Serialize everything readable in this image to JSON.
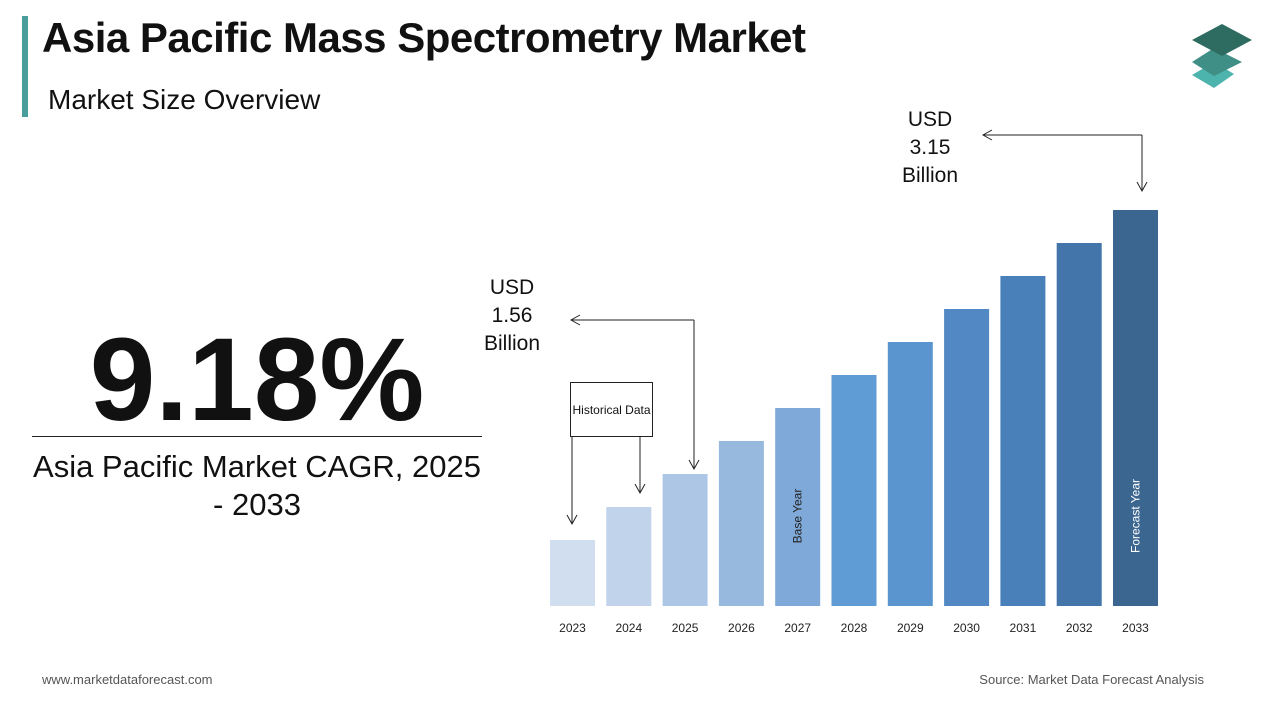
{
  "header": {
    "title": "Asia Pacific Mass Spectrometry Market",
    "subtitle": "Market Size Overview"
  },
  "logo_icon": "stacked-layers-icon",
  "cagr": {
    "value": "9.18%",
    "label": "Asia Pacific Market CAGR, 2025 - 2033"
  },
  "footer": {
    "website": "www.marketdataforecast.com",
    "source": "Source: Market Data Forecast Analysis"
  },
  "chart_data": {
    "type": "bar",
    "categories": [
      "2023",
      "2024",
      "2025",
      "2026",
      "2027",
      "2028",
      "2029",
      "2030",
      "2031",
      "2032",
      "2033"
    ],
    "values": [
      null,
      null,
      1.56,
      null,
      null,
      null,
      null,
      null,
      null,
      null,
      3.15
    ],
    "unit": "USD Billion",
    "colors": [
      "#d1deef",
      "#c0d3ea",
      "#adc6e5",
      "#97b9de",
      "#7fa9d8",
      "#5f9bd5",
      "#5a95d0",
      "#5289c4",
      "#4a80ba",
      "#4375ab",
      "#3b6690"
    ],
    "bar_labels": {
      "2027": "Base Year",
      "2033": "Forecast Year"
    },
    "annotations": {
      "start": "USD 1.56 Billion",
      "end": "USD 3.15 Billion",
      "historical": "Historical Data"
    },
    "grid": false
  }
}
